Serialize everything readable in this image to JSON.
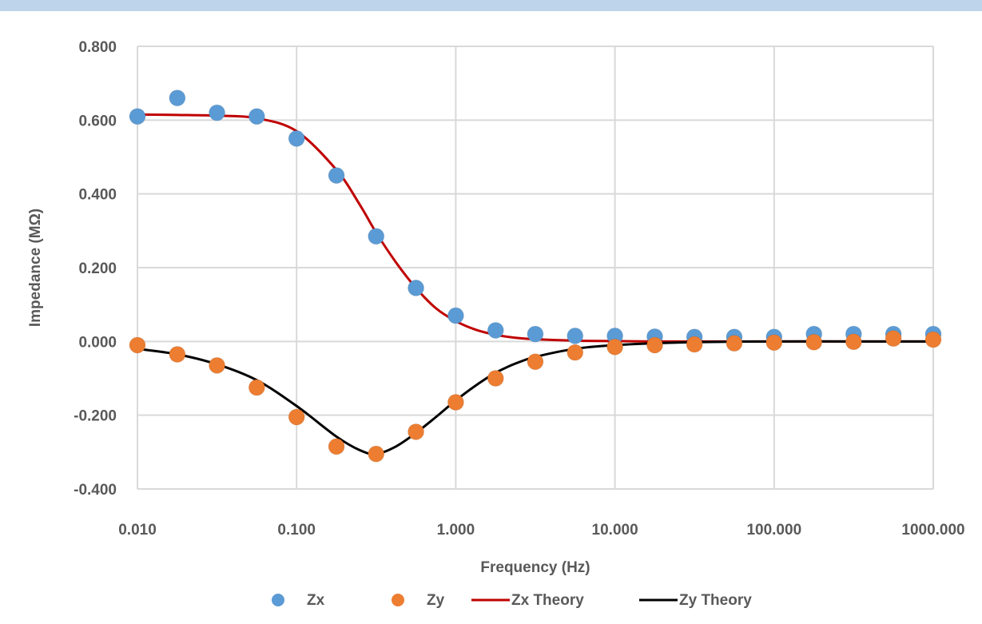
{
  "chart_data": {
    "type": "scatter",
    "x_scale": "log",
    "xlabel": "Frequency (Hz)",
    "ylabel": "Impedance (MΩ)",
    "xlim": [
      0.01,
      1000
    ],
    "ylim": [
      -0.4,
      0.8
    ],
    "grid": true,
    "legend_position": "bottom",
    "x_ticks": [
      "0.010",
      "0.100",
      "1.000",
      "10.000",
      "100.000",
      "1000.000"
    ],
    "y_ticks": [
      "0.800",
      "0.600",
      "0.400",
      "0.200",
      "0.000",
      "-0.200",
      "-0.400"
    ],
    "series": [
      {
        "name": "Zx",
        "kind": "marker",
        "color": "#5b9bd5",
        "x": [
          0.01,
          0.0178,
          0.0316,
          0.0562,
          0.1,
          0.178,
          0.316,
          0.562,
          1.0,
          1.78,
          3.16,
          5.62,
          10,
          17.8,
          31.6,
          56.2,
          100,
          178,
          316,
          562,
          1000
        ],
        "y": [
          0.61,
          0.66,
          0.62,
          0.61,
          0.55,
          0.45,
          0.285,
          0.145,
          0.07,
          0.03,
          0.02,
          0.015,
          0.015,
          0.013,
          0.012,
          0.012,
          0.012,
          0.02,
          0.02,
          0.02,
          0.02
        ]
      },
      {
        "name": "Zy",
        "kind": "marker",
        "color": "#ed7d31",
        "x": [
          0.01,
          0.0178,
          0.0316,
          0.0562,
          0.1,
          0.178,
          0.316,
          0.562,
          1.0,
          1.78,
          3.16,
          5.62,
          10,
          17.8,
          31.6,
          56.2,
          100,
          178,
          316,
          562,
          1000
        ],
        "y": [
          -0.01,
          -0.035,
          -0.065,
          -0.125,
          -0.205,
          -0.285,
          -0.305,
          -0.245,
          -0.165,
          -0.1,
          -0.055,
          -0.03,
          -0.015,
          -0.01,
          -0.008,
          -0.005,
          -0.003,
          -0.002,
          -0.001,
          0.008,
          0.005
        ]
      },
      {
        "name": "Zx Theory",
        "kind": "line",
        "color": "#c00000",
        "x": [
          0.01,
          0.0178,
          0.0316,
          0.0562,
          0.1,
          0.178,
          0.25,
          0.316,
          0.42,
          0.562,
          0.75,
          1.0,
          1.33,
          1.78,
          2.37,
          3.16,
          5.62,
          10,
          17.8,
          31.6,
          100,
          316,
          1000
        ],
        "y": [
          0.615,
          0.614,
          0.612,
          0.605,
          0.57,
          0.465,
          0.37,
          0.295,
          0.215,
          0.145,
          0.09,
          0.055,
          0.032,
          0.018,
          0.01,
          0.006,
          0.002,
          0.001,
          0.0,
          0.0,
          0.0,
          0.0,
          0.0
        ]
      },
      {
        "name": "Zy Theory",
        "kind": "line",
        "color": "#000000",
        "x": [
          0.01,
          0.0178,
          0.0316,
          0.0562,
          0.1,
          0.178,
          0.25,
          0.316,
          0.42,
          0.562,
          0.75,
          1.0,
          1.33,
          1.78,
          2.37,
          3.16,
          5.62,
          10,
          17.8,
          31.6,
          100,
          316,
          1000
        ],
        "y": [
          -0.02,
          -0.035,
          -0.062,
          -0.105,
          -0.175,
          -0.258,
          -0.295,
          -0.305,
          -0.285,
          -0.248,
          -0.205,
          -0.16,
          -0.12,
          -0.085,
          -0.06,
          -0.042,
          -0.02,
          -0.01,
          -0.005,
          -0.002,
          0.0,
          0.0,
          0.0
        ]
      }
    ]
  }
}
